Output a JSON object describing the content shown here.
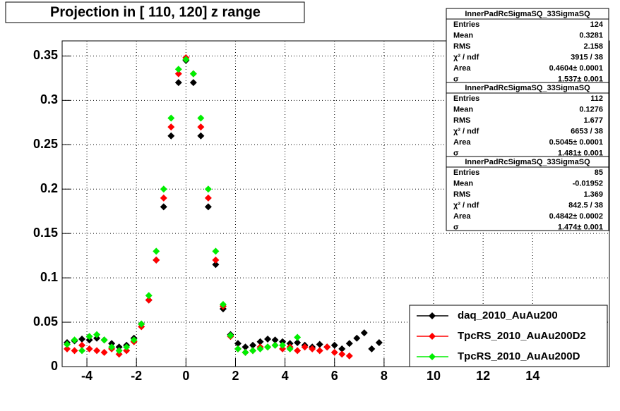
{
  "chart_data": {
    "type": "scatter",
    "title": "Projection in [ 110, 120] z range",
    "x": [
      -4.8,
      -4.5,
      -4.2,
      -3.9,
      -3.6,
      -3.3,
      -3.0,
      -2.7,
      -2.4,
      -2.1,
      -1.8,
      -1.5,
      -1.2,
      -0.9,
      -0.6,
      -0.3,
      0,
      0.3,
      0.6,
      0.9,
      1.2,
      1.5,
      1.8,
      2.1,
      2.4,
      2.7,
      3.0,
      3.3,
      3.6,
      3.9,
      4.2,
      4.5,
      4.8,
      5.1,
      5.4,
      5.7,
      6.0,
      6.3,
      6.6,
      6.9,
      7.2,
      7.5,
      7.8
    ],
    "series": [
      {
        "name": "daq_2010_AuAu200",
        "color": "#000000",
        "values": [
          0.027,
          0.029,
          0.031,
          0.03,
          0.032,
          0.03,
          0.026,
          0.022,
          0.024,
          0.032,
          0.048,
          0.075,
          0.12,
          0.18,
          0.26,
          0.32,
          0.345,
          0.32,
          0.26,
          0.18,
          0.115,
          0.065,
          0.036,
          0.026,
          0.022,
          0.024,
          0.028,
          0.031,
          0.03,
          0.028,
          0.026,
          0.027,
          0.024,
          0.022,
          0.025,
          0.022,
          0.024,
          0.02,
          0.026,
          0.032,
          0.038,
          0.02,
          0.027
        ]
      },
      {
        "name": "TpcRS_2010_AuAu200D2",
        "color": "#ff0000",
        "values": [
          0.02,
          0.018,
          0.024,
          0.02,
          0.018,
          0.016,
          0.02,
          0.014,
          0.018,
          0.028,
          0.045,
          0.075,
          0.12,
          0.19,
          0.27,
          0.33,
          0.348,
          0.33,
          0.27,
          0.19,
          0.12,
          0.068,
          0.034,
          0.02,
          0.016,
          0.018,
          0.022,
          0.022,
          0.024,
          0.02,
          0.022,
          0.018,
          0.022,
          0.02,
          0.018,
          0.022,
          0.016,
          0.014,
          0.012,
          null,
          null,
          null,
          null
        ]
      },
      {
        "name": "TpcRS_2010_AuAu200D",
        "color": "#00ee00",
        "values": [
          0.025,
          0.03,
          0.018,
          0.034,
          0.036,
          0.03,
          0.022,
          0.018,
          0.022,
          0.03,
          0.048,
          0.08,
          0.13,
          0.2,
          0.28,
          0.335,
          0.346,
          0.33,
          0.28,
          0.2,
          0.13,
          0.07,
          0.035,
          0.02,
          0.016,
          0.018,
          0.02,
          0.022,
          0.024,
          0.024,
          0.02,
          0.033,
          null,
          null,
          null,
          null,
          null,
          null,
          null,
          null,
          null,
          null,
          null
        ]
      }
    ],
    "xlim": [
      -5,
      17.1
    ],
    "xticks": [
      -4,
      -2,
      0,
      2,
      4,
      6,
      8,
      10,
      12,
      14
    ],
    "ylim": [
      0,
      0.367
    ],
    "yticks": [
      0,
      0.05,
      0.1,
      0.15,
      0.2,
      0.25,
      0.3,
      0.35
    ],
    "grid": true,
    "legend": "bottom-right",
    "stats": [
      {
        "title": "InnerPadRcSigmaSQ_33SigmaSQ",
        "rows": [
          [
            "Entries",
            "124"
          ],
          [
            "Mean",
            "0.3281"
          ],
          [
            "RMS",
            "2.158"
          ],
          [
            "χ² / ndf",
            "3915 / 38"
          ],
          [
            "Area",
            "0.4604± 0.0001"
          ],
          [
            "σ",
            "1.537± 0.001"
          ]
        ]
      },
      {
        "title": "InnerPadRcSigmaSQ_33SigmaSQ",
        "rows": [
          [
            "Entries",
            "112"
          ],
          [
            "Mean",
            "0.1276"
          ],
          [
            "RMS",
            "1.677"
          ],
          [
            "χ² / ndf",
            "6653 / 38"
          ],
          [
            "Area",
            "0.5045± 0.0001"
          ],
          [
            "σ",
            "1.481± 0.001"
          ]
        ]
      },
      {
        "title": "InnerPadRcSigmaSQ_33SigmaSQ",
        "rows": [
          [
            "Entries",
            "85"
          ],
          [
            "Mean",
            "-0.01952"
          ],
          [
            "RMS",
            "1.369"
          ],
          [
            "χ² / ndf",
            "842.5 / 38"
          ],
          [
            "Area",
            "0.4842± 0.0002"
          ],
          [
            "σ",
            "1.474± 0.001"
          ]
        ]
      }
    ]
  }
}
